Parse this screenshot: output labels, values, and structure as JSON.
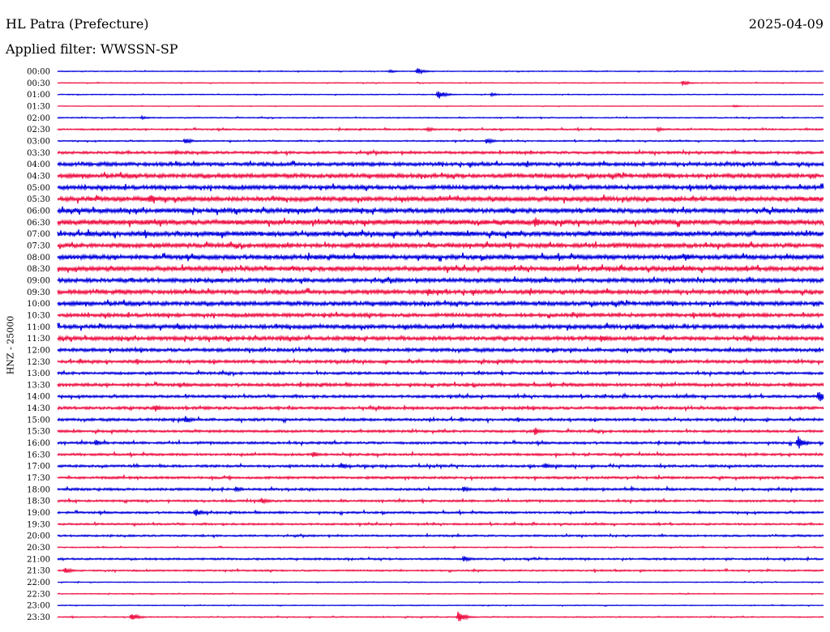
{
  "header": {
    "title": "HL Patra (Prefecture)",
    "date": "2025-04-09",
    "filter": "Applied filter: WWSSN-SP"
  },
  "chart_data": {
    "type": "line",
    "title": "HL Patra (Prefecture)",
    "subtitle": "Applied filter: WWSSN-SP",
    "date": "2025-04-09",
    "ylabel": "HNZ - 25000",
    "xlabel": "",
    "row_labels": [
      "00:00",
      "00:30",
      "01:00",
      "01:30",
      "02:00",
      "02:30",
      "03:00",
      "03:30",
      "04:00",
      "04:30",
      "05:00",
      "05:30",
      "06:00",
      "06:30",
      "07:00",
      "07:30",
      "08:00",
      "08:30",
      "09:00",
      "09:30",
      "10:00",
      "10:30",
      "11:00",
      "11:30",
      "12:00",
      "12:30",
      "13:00",
      "13:30",
      "14:00",
      "14:30",
      "15:00",
      "15:30",
      "16:00",
      "16:30",
      "17:00",
      "17:30",
      "18:00",
      "18:30",
      "19:00",
      "19:30",
      "20:00",
      "20:30",
      "21:00",
      "21:30",
      "22:00",
      "22:30",
      "23:00",
      "23:30"
    ],
    "colors": [
      "#0000dd",
      "#ee1144"
    ],
    "noise_level": [
      0.3,
      0.3,
      0.3,
      0.2,
      0.4,
      0.6,
      0.5,
      1.0,
      1.4,
      1.6,
      1.6,
      1.8,
      1.8,
      2.0,
      1.9,
      1.7,
      1.8,
      1.8,
      1.6,
      1.6,
      1.6,
      1.4,
      1.6,
      1.5,
      1.3,
      1.2,
      1.0,
      1.2,
      1.0,
      1.1,
      1.0,
      0.9,
      0.9,
      0.9,
      0.9,
      0.9,
      0.9,
      0.8,
      0.8,
      0.7,
      0.7,
      0.4,
      0.7,
      0.6,
      0.3,
      0.3,
      0.3,
      0.4
    ],
    "events": [
      {
        "row": 0,
        "minute": 14.1,
        "amplitude": 4
      },
      {
        "row": 0,
        "minute": 13.0,
        "amplitude": 2
      },
      {
        "row": 1,
        "minute": 24.5,
        "amplitude": 3
      },
      {
        "row": 2,
        "minute": 14.9,
        "amplitude": 6
      },
      {
        "row": 2,
        "minute": 17.0,
        "amplitude": 2
      },
      {
        "row": 3,
        "minute": 26.5,
        "amplitude": 1.5
      },
      {
        "row": 4,
        "minute": 3.3,
        "amplitude": 2
      },
      {
        "row": 5,
        "minute": 14.5,
        "amplitude": 3
      },
      {
        "row": 5,
        "minute": 23.5,
        "amplitude": 3
      },
      {
        "row": 6,
        "minute": 5.0,
        "amplitude": 4
      },
      {
        "row": 6,
        "minute": 16.8,
        "amplitude": 4
      },
      {
        "row": 7,
        "minute": 4.6,
        "amplitude": 3
      },
      {
        "row": 11,
        "minute": 3.6,
        "amplitude": 7
      },
      {
        "row": 13,
        "minute": 18.7,
        "amplitude": 7
      },
      {
        "row": 16,
        "minute": 24.6,
        "amplitude": 5
      },
      {
        "row": 19,
        "minute": 14.5,
        "amplitude": 5
      },
      {
        "row": 22,
        "minute": 4.7,
        "amplitude": 5
      },
      {
        "row": 22,
        "minute": 22.7,
        "amplitude": 5
      },
      {
        "row": 23,
        "minute": 21.3,
        "amplitude": 5
      },
      {
        "row": 28,
        "minute": 29.8,
        "amplitude": 8
      },
      {
        "row": 29,
        "minute": 3.8,
        "amplitude": 5
      },
      {
        "row": 30,
        "minute": 5.0,
        "amplitude": 5
      },
      {
        "row": 31,
        "minute": 18.7,
        "amplitude": 5
      },
      {
        "row": 32,
        "minute": 29.0,
        "amplitude": 9
      },
      {
        "row": 32,
        "minute": 1.5,
        "amplitude": 4
      },
      {
        "row": 33,
        "minute": 10.0,
        "amplitude": 4
      },
      {
        "row": 34,
        "minute": 11.1,
        "amplitude": 4
      },
      {
        "row": 34,
        "minute": 19.1,
        "amplitude": 4
      },
      {
        "row": 36,
        "minute": 7.0,
        "amplitude": 4
      },
      {
        "row": 36,
        "minute": 15.9,
        "amplitude": 4
      },
      {
        "row": 37,
        "minute": 8.0,
        "amplitude": 4
      },
      {
        "row": 38,
        "minute": 5.4,
        "amplitude": 5
      },
      {
        "row": 42,
        "minute": 15.9,
        "amplitude": 4
      },
      {
        "row": 43,
        "minute": 0.3,
        "amplitude": 4
      },
      {
        "row": 47,
        "minute": 2.9,
        "amplitude": 5
      },
      {
        "row": 47,
        "minute": 15.7,
        "amplitude": 8
      }
    ]
  }
}
